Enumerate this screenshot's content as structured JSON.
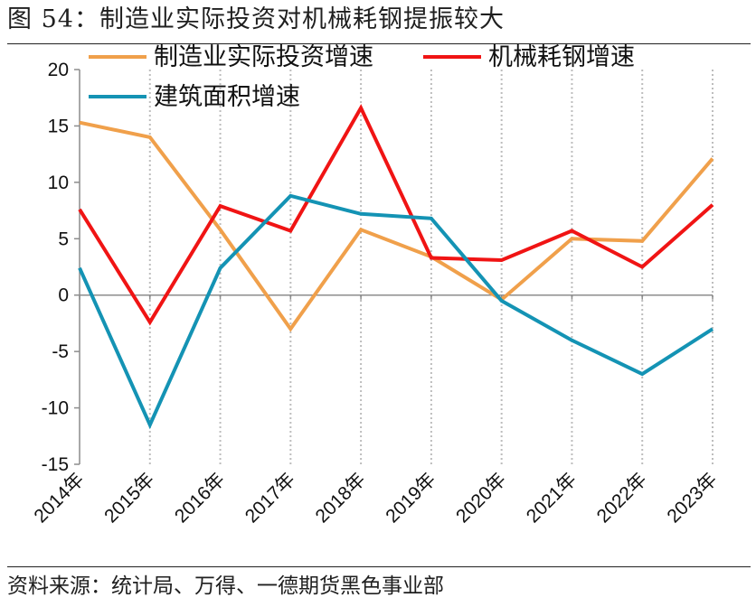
{
  "figure": {
    "title": "图 54：制造业实际投资对机械耗钢提振较大",
    "source": "资料来源：统计局、万得、一德期货黑色事业部"
  },
  "chart_data": {
    "type": "line",
    "title": "图 54：制造业实际投资对机械耗钢提振较大",
    "xlabel": "",
    "ylabel": "",
    "ylim": [
      -15,
      20
    ],
    "yticks": [
      20,
      15,
      10,
      5,
      0,
      -5,
      -10,
      -15
    ],
    "categories": [
      "2014年",
      "2015年",
      "2016年",
      "2017年",
      "2018年",
      "2019年",
      "2020年",
      "2021年",
      "2022年",
      "2023年"
    ],
    "legend_position": "top",
    "vertical_gridlines": "dotted",
    "series": [
      {
        "name": "制造业实际投资增速",
        "color": "#F0A04B",
        "values": [
          15.3,
          14.0,
          5.8,
          -3.0,
          5.8,
          3.4,
          -0.4,
          5.0,
          4.8,
          12.1
        ]
      },
      {
        "name": "机械耗钢增速",
        "color": "#F01414",
        "values": [
          7.6,
          -2.4,
          7.9,
          5.7,
          16.6,
          3.3,
          3.1,
          5.7,
          2.5,
          8.0
        ]
      },
      {
        "name": "建筑面积增速",
        "color": "#1493B4",
        "values": [
          2.4,
          -11.5,
          2.4,
          8.8,
          7.2,
          6.8,
          -0.5,
          -4.0,
          -7.0,
          -3.0
        ]
      }
    ]
  }
}
